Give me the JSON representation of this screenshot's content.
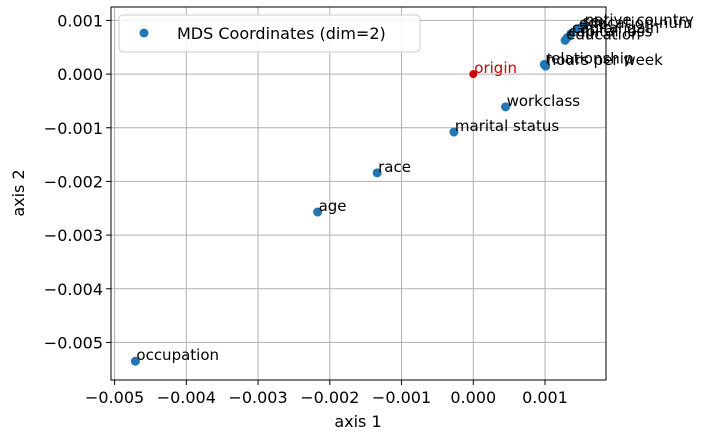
{
  "chart_data": {
    "type": "scatter",
    "xlabel": "axis 1",
    "ylabel": "axis 2",
    "xlim": [
      -0.00505,
      0.00185
    ],
    "ylim": [
      -0.0057,
      0.00125
    ],
    "xticks": [
      -0.005,
      -0.004,
      -0.003,
      -0.002,
      -0.001,
      0.0,
      0.001
    ],
    "xtick_labels": [
      "−0.005",
      "−0.004",
      "−0.003",
      "−0.002",
      "−0.001",
      "0.000",
      "0.001"
    ],
    "yticks": [
      0.001,
      0.0,
      -0.001,
      -0.002,
      -0.003,
      -0.004,
      -0.005
    ],
    "ytick_labels": [
      "0.001",
      "0.000",
      "−0.001",
      "−0.002",
      "−0.003",
      "−0.004",
      "−0.005"
    ],
    "grid": true,
    "legend": {
      "placement": "top-left",
      "entries": [
        "MDS Coordinates (dim=2)"
      ]
    },
    "series": [
      {
        "name": "MDS Coordinates (dim=2)",
        "color": "#1f77b4",
        "points": [
          {
            "label": "occupation",
            "x": -0.00471,
            "y": -0.00535
          },
          {
            "label": "age",
            "x": -0.00217,
            "y": -0.00257
          },
          {
            "label": "race",
            "x": -0.00134,
            "y": -0.00184
          },
          {
            "label": "marital status",
            "x": -0.00027,
            "y": -0.00108
          },
          {
            "label": "workclass",
            "x": 0.00045,
            "y": -0.00061
          },
          {
            "label": "relationship",
            "x": 0.00099,
            "y": 0.00018
          },
          {
            "label": "hours per week",
            "x": 0.00101,
            "y": 0.00015
          },
          {
            "label": "education",
            "x": 0.00128,
            "y": 0.00063
          },
          {
            "label": "capital loss",
            "x": 0.00131,
            "y": 0.00068
          },
          {
            "label": "capital gain",
            "x": 0.00136,
            "y": 0.00075
          },
          {
            "label": "education-num",
            "x": 0.00146,
            "y": 0.00084
          },
          {
            "label": "sex",
            "x": 0.00151,
            "y": 0.00087
          },
          {
            "label": "native country",
            "x": 0.00154,
            "y": 0.0009
          }
        ]
      }
    ],
    "annotations": [
      {
        "label": "origin",
        "x": 0.0,
        "y": 0.0,
        "color": "#cc0000"
      }
    ]
  }
}
